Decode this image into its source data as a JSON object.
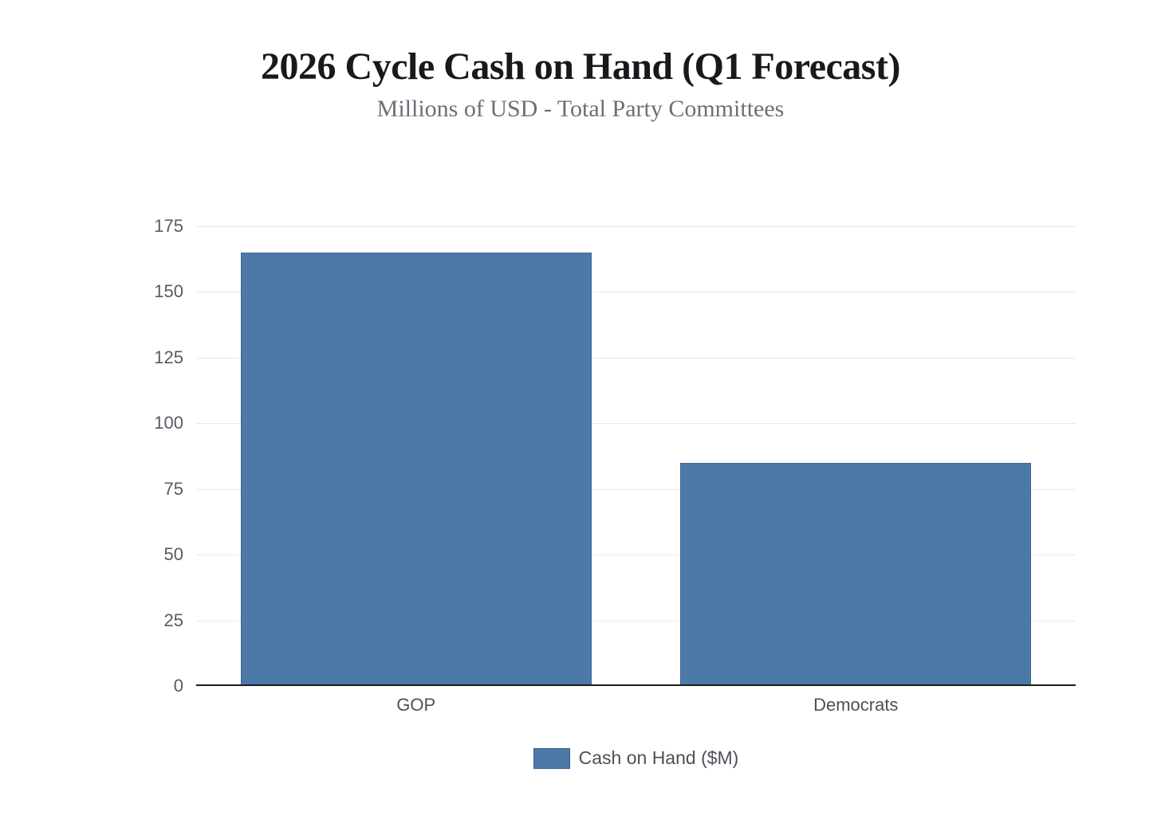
{
  "header": {
    "title": "2026 Cycle Cash on Hand (Q1 Forecast)",
    "subtitle": "Millions of USD - Total Party Committees"
  },
  "chart_data": {
    "type": "bar",
    "categories": [
      "GOP",
      "Democrats"
    ],
    "series": [
      {
        "name": "Cash on Hand ($M)",
        "values": [
          165,
          85
        ]
      }
    ],
    "title": "2026 Cycle Cash on Hand (Q1 Forecast)",
    "subtitle": "Millions of USD - Total Party Committees",
    "xlabel": "",
    "ylabel": "",
    "ylim": [
      0,
      175
    ],
    "yticks": [
      0,
      25,
      50,
      75,
      100,
      125,
      150,
      175
    ],
    "grid": "horizontal",
    "legend_position": "bottom",
    "legend_label": "Cash on Hand ($M)",
    "colors": {
      "background": "#ffffff",
      "bar_fill": "#4d79a8",
      "bar_border": "#3c6798",
      "swatch_border": "#34608f",
      "gridline": "#e6e9ee",
      "axis_line": "#1c1c1c",
      "tick_label": "#565b63",
      "category_label": "#4c5158",
      "title": "#17191c",
      "subtitle": "#6b7078"
    }
  }
}
